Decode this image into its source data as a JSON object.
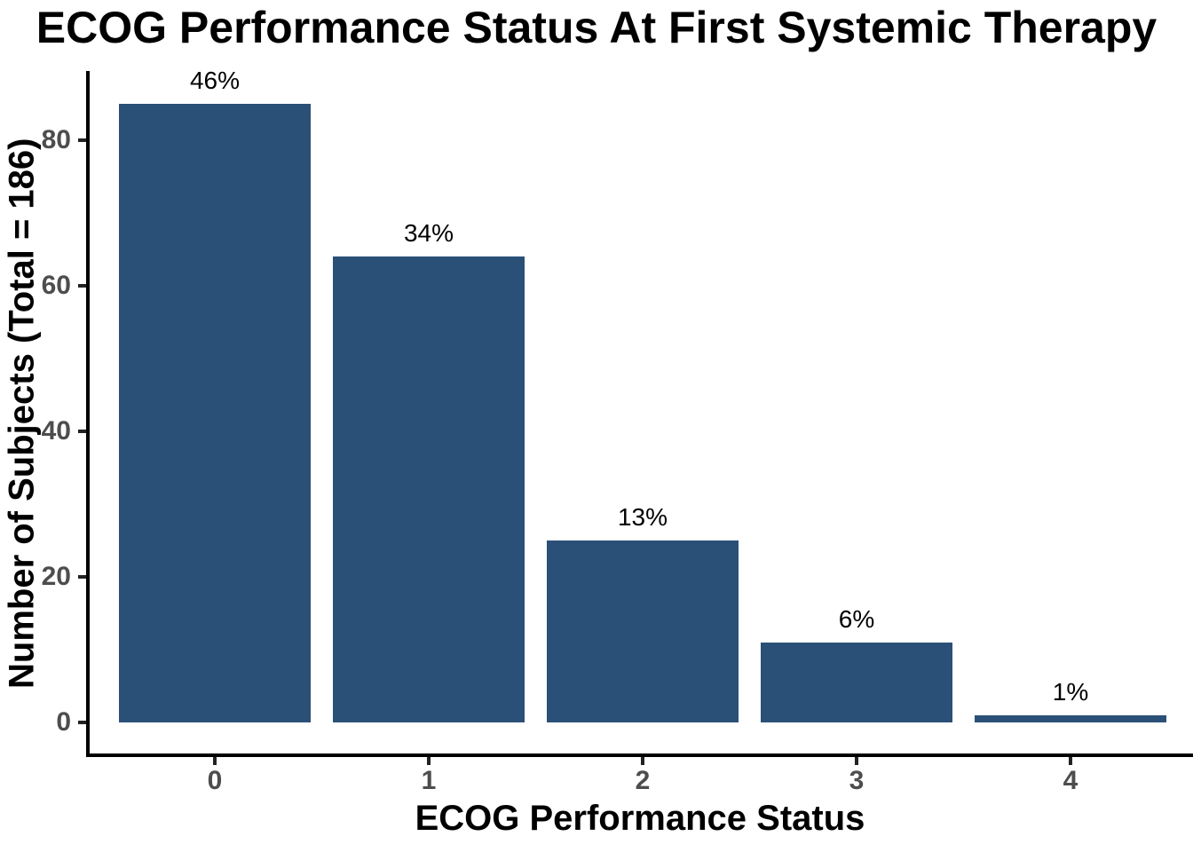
{
  "chart_data": {
    "type": "bar",
    "title": "ECOG Performance Status At First Systemic Therapy",
    "xlabel": "ECOG Performance Status",
    "ylabel": "Number of Subjects (Total = 186)",
    "total_subjects": 186,
    "categories": [
      "0",
      "1",
      "2",
      "3",
      "4"
    ],
    "values": [
      85,
      64,
      25,
      11,
      1
    ],
    "bar_labels": [
      "46%",
      "34%",
      "13%",
      "6%",
      "1%"
    ],
    "yticks": [
      0,
      20,
      40,
      60,
      80
    ],
    "ylim": [
      0,
      89
    ],
    "grid": false,
    "legend": false,
    "bar_color": "#2B5078",
    "axis_text_color": "#4D4D4D",
    "axis_line_color": "#000000",
    "value_label_color": "#000000",
    "tick_mark_color": "#222222"
  }
}
